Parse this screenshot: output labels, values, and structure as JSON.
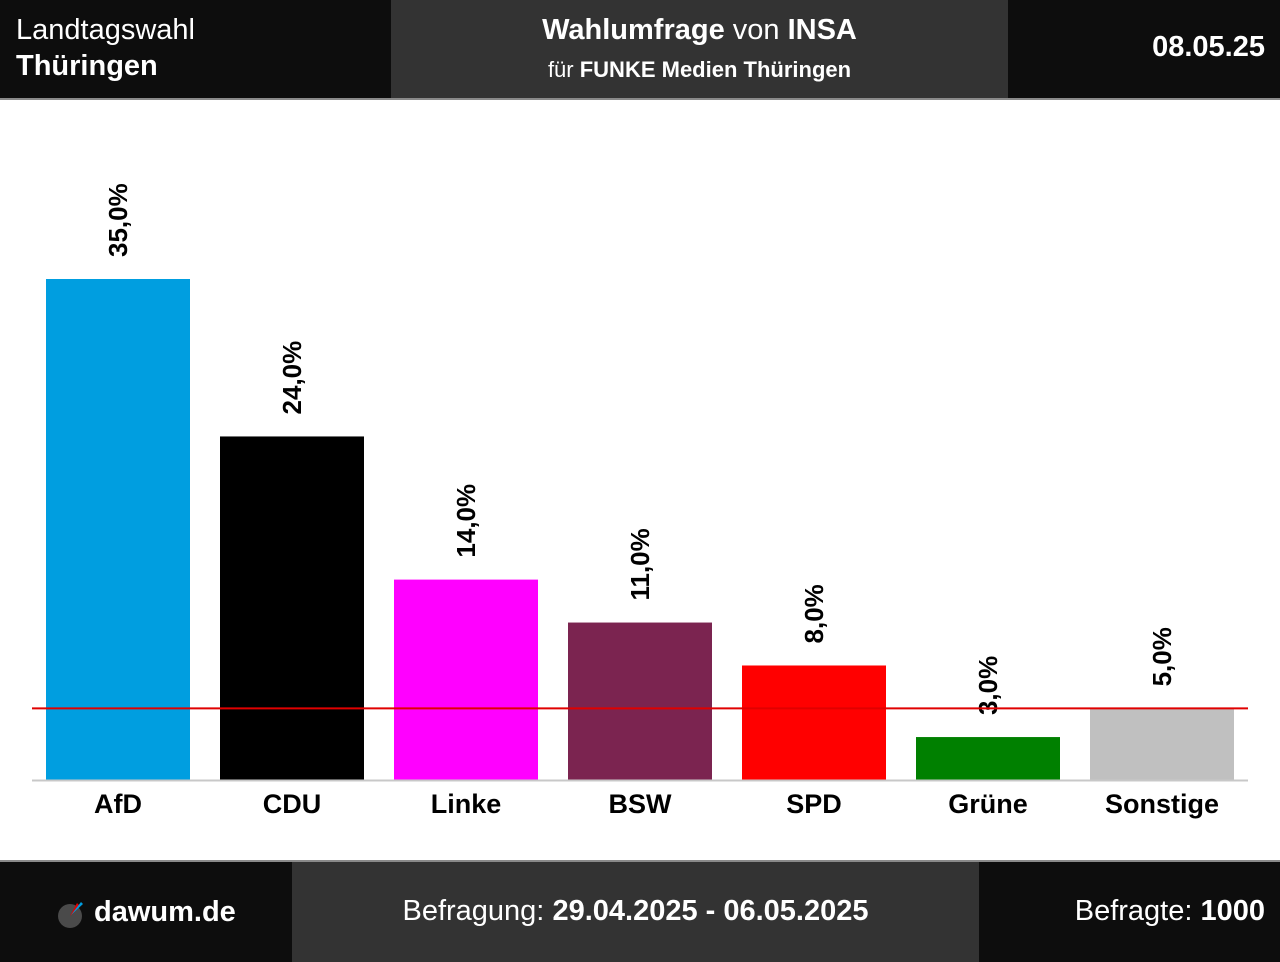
{
  "header": {
    "election_line1": "Landtagswahl",
    "election_line2": "Thüringen",
    "title_bold1": "Wahlumfrage",
    "title_mid": " von ",
    "title_bold2": "INSA",
    "subtitle_prefix": "für ",
    "subtitle_bold": "FUNKE Medien Thüringen",
    "date": "08.05.25"
  },
  "footer": {
    "logo_text": "dawum.de",
    "period_label": "Befragung: ",
    "period_value": "29.04.2025 - 06.05.2025",
    "respondents_label": "Befragte: ",
    "respondents_value": "1000"
  },
  "chart_data": {
    "type": "bar",
    "categories": [
      "AfD",
      "CDU",
      "Linke",
      "BSW",
      "SPD",
      "Grüne",
      "Sonstige"
    ],
    "values": [
      35.0,
      24.0,
      14.0,
      11.0,
      8.0,
      3.0,
      5.0
    ],
    "value_labels": [
      "35,0%",
      "24,0%",
      "14,0%",
      "11,0%",
      "8,0%",
      "3,0%",
      "5,0%"
    ],
    "colors": [
      "#009EE0",
      "#000000",
      "#FF00FF",
      "#7B2450",
      "#FF0000",
      "#008000",
      "#C0C0C0"
    ],
    "threshold": 5.0,
    "threshold_color": "#E00000",
    "ylim": [
      0,
      35.0
    ],
    "grid": false,
    "legend": "none"
  }
}
